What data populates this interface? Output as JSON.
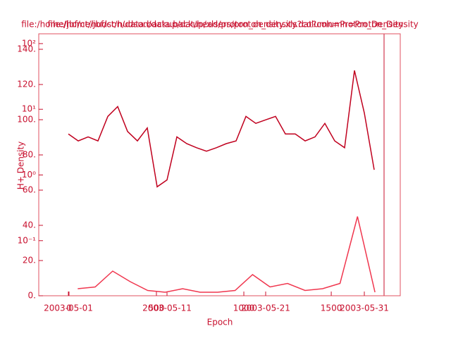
{
  "chart_data": [
    {
      "type": "line",
      "title": "file:/home/jbf/ct/hudson/data.backup/dat/headers/proton_density.dat?column=Proton_Density",
      "xlabel": "Epoch",
      "ylabel": "H+ Density",
      "log_y": true,
      "x": [
        "2003-05-01",
        "2003-05-02",
        "2003-05-03",
        "2003-05-04",
        "2003-05-05",
        "2003-05-06",
        "2003-05-07",
        "2003-05-08",
        "2003-05-09",
        "2003-05-10",
        "2003-05-11",
        "2003-05-12",
        "2003-05-13",
        "2003-05-14",
        "2003-05-15",
        "2003-05-16",
        "2003-05-17",
        "2003-05-18",
        "2003-05-19",
        "2003-05-20",
        "2003-05-21",
        "2003-05-22",
        "2003-05-23",
        "2003-05-24",
        "2003-05-25",
        "2003-05-26",
        "2003-05-27",
        "2003-05-28",
        "2003-05-29",
        "2003-05-30",
        "2003-05-31",
        "2003-06-01"
      ],
      "series": [
        {
          "name": "Proton_Density",
          "color": "#c0001e",
          "values": [
            4.2,
            3.3,
            3.8,
            3.3,
            7.8,
            11,
            4.6,
            3.3,
            5.2,
            0.66,
            0.84,
            3.8,
            3.0,
            2.6,
            2.3,
            2.6,
            3.0,
            3.3,
            7.8,
            6.1,
            6.9,
            7.8,
            4.2,
            4.2,
            3.3,
            3.8,
            6.1,
            3.3,
            2.6,
            39,
            8.8,
            1.2
          ]
        }
      ],
      "xlim": [
        "2003-04-28",
        "2003-06-02"
      ],
      "xticks": [
        "2003-05-01",
        "2003-05-11",
        "2003-05-21",
        "2003-05-31"
      ],
      "ylim": [
        0.0145,
        141
      ],
      "yticks": [
        {
          "value": 0.1,
          "label": "10⁻¹"
        },
        {
          "value": 1,
          "label": "10⁰"
        },
        {
          "value": 10,
          "label": "10¹"
        },
        {
          "value": 100,
          "label": "10²"
        }
      ]
    },
    {
      "type": "line",
      "title": "file:/home/jbf/ct/hudson/data.backup/xls/proton_density.xls?column=Proton_Density",
      "log_y": false,
      "x": [
        50,
        150,
        250,
        350,
        450,
        550,
        650,
        750,
        850,
        950,
        1050,
        1150,
        1250,
        1350,
        1450,
        1550,
        1650,
        1750
      ],
      "series": [
        {
          "name": "Proton_Density",
          "color": "#f0364e",
          "values": [
            4,
            5,
            14,
            8,
            3,
            2,
            4,
            2,
            2,
            3,
            12,
            5,
            7,
            3,
            4,
            7,
            45,
            2
          ]
        }
      ],
      "xlim": [
        -173,
        1802
      ],
      "xticks": [
        0,
        500,
        1000,
        1500
      ],
      "ylim": [
        0,
        148.8
      ],
      "yticks": [
        {
          "value": 0,
          "label": "0."
        },
        {
          "value": 20,
          "label": "20."
        },
        {
          "value": 40,
          "label": "40."
        },
        {
          "value": 60,
          "label": "60."
        },
        {
          "value": 80,
          "label": "80."
        },
        {
          "value": 100,
          "label": "100."
        },
        {
          "value": 120,
          "label": "120."
        },
        {
          "value": 140,
          "label": "140."
        }
      ]
    }
  ]
}
